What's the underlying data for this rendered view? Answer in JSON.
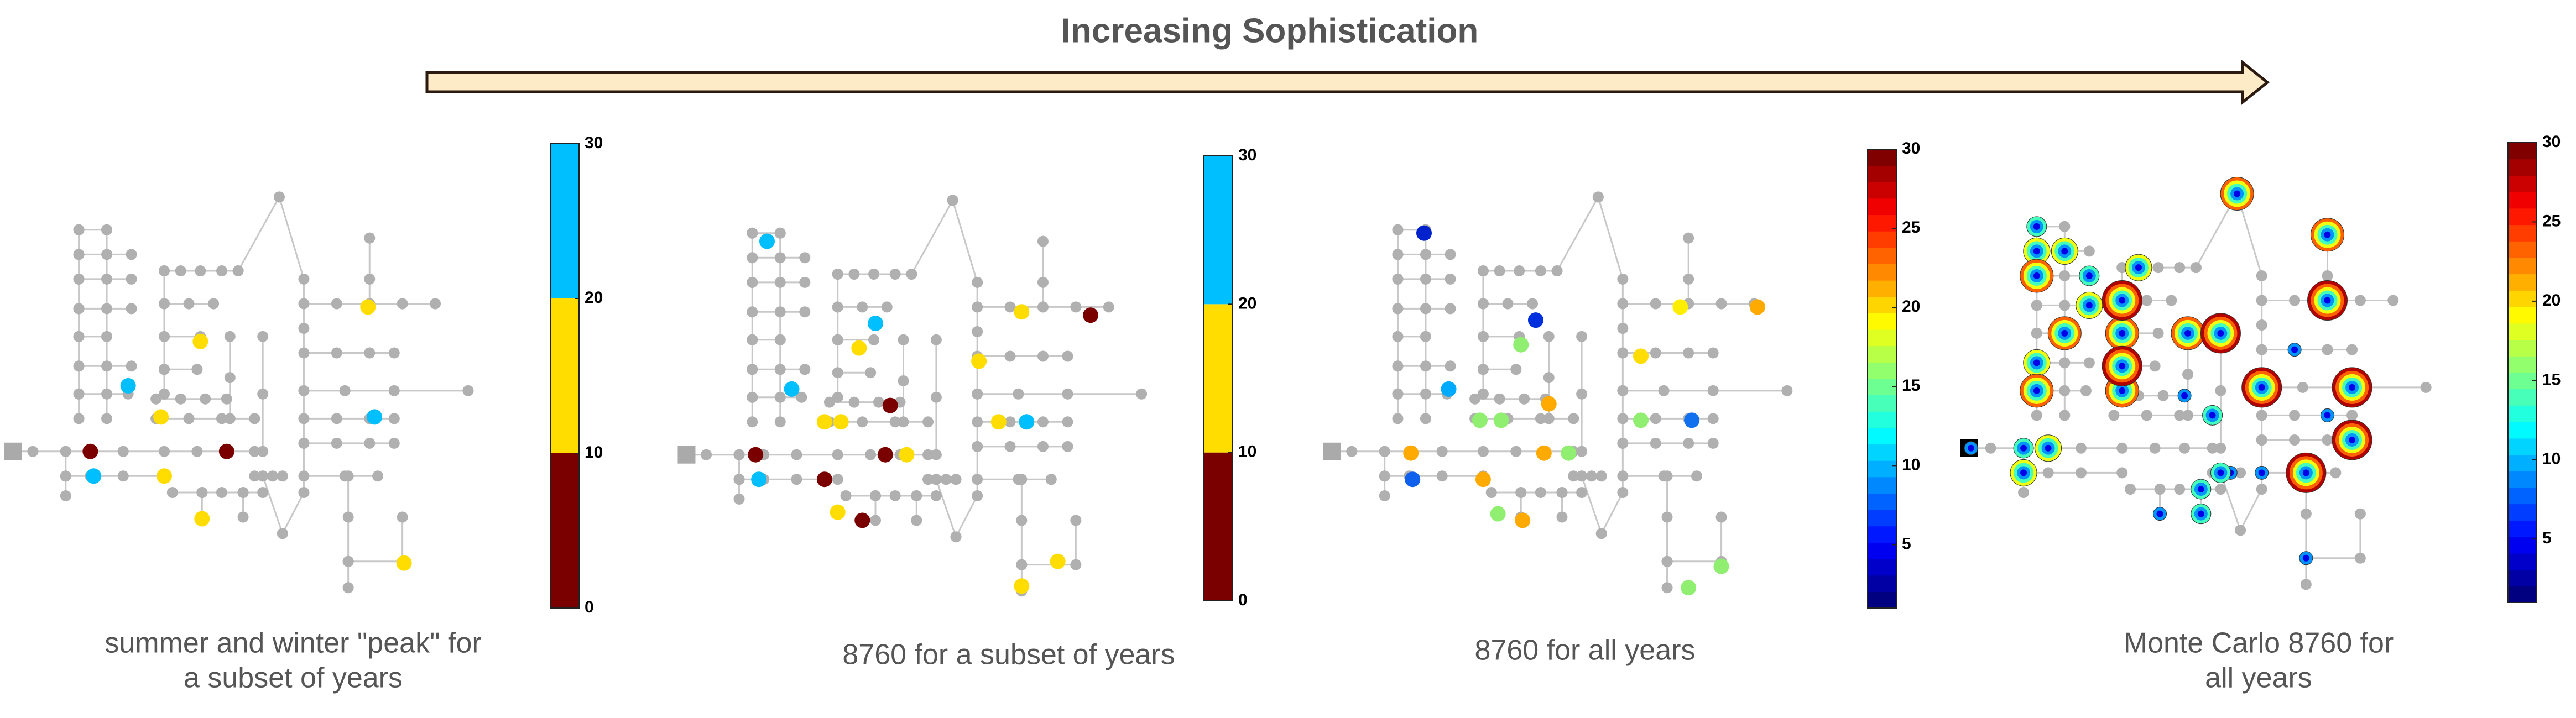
{
  "title": "Increasing Sophistication",
  "panels": [
    {
      "caption": [
        "summer and winter \"peak\" for",
        "a subset of years"
      ],
      "colorbar": {
        "lim": [
          0,
          30
        ],
        "ticks": [
          0,
          10,
          20,
          30
        ],
        "colors": [
          "#7a0000",
          "#ffdd00",
          "#00bfff"
        ]
      }
    },
    {
      "caption": [
        "8760 for a subset of years"
      ],
      "colorbar": {
        "lim": [
          0,
          30
        ],
        "ticks": [
          0,
          10,
          20,
          30
        ],
        "colors": [
          "#7a0000",
          "#ffdd00",
          "#00bfff"
        ]
      }
    },
    {
      "caption": [
        "8760 for all years"
      ],
      "colorbar": {
        "lim": [
          1,
          30
        ],
        "ticks": [
          5,
          10,
          15,
          20,
          25,
          30
        ],
        "colormap": "jet"
      }
    },
    {
      "caption": [
        "Monte Carlo 8760 for",
        "all years"
      ],
      "colorbar": {
        "lim": [
          1,
          30
        ],
        "ticks": [
          5,
          10,
          15,
          20,
          25,
          30
        ],
        "colormap": "jet"
      }
    }
  ]
}
